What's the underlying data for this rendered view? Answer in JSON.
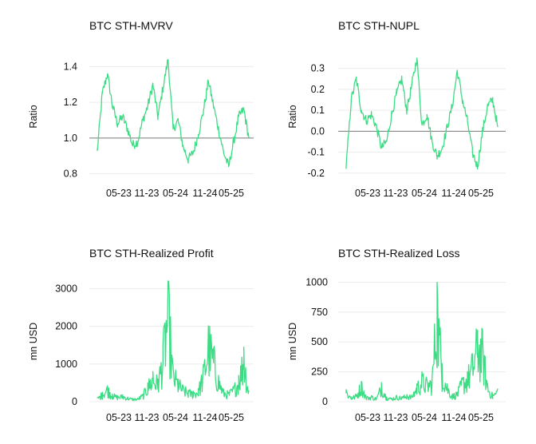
{
  "chart_data": [
    {
      "type": "line",
      "title": "BTC STH-MVRV",
      "ylabel": "Ratio",
      "ylim": [
        0.78,
        1.46
      ],
      "yticks": [
        0.8,
        1.0,
        1.2,
        1.4
      ],
      "ytick_labels": [
        "0.8",
        "1.0",
        "1.2",
        "1.4"
      ],
      "xticks": [
        "05-23",
        "11-23",
        "05-24",
        "11-24",
        "05-25"
      ],
      "reference_line": 1.0,
      "grid": true,
      "color": "#3ddc84",
      "series": [
        {
          "x": [
            "2023-01",
            "2023-02",
            "2023-03",
            "2023-04",
            "2023-05",
            "2023-06",
            "2023-07",
            "2023-08",
            "2023-09",
            "2023-10",
            "2023-11",
            "2023-12",
            "2024-01",
            "2024-02",
            "2024-03",
            "2024-04",
            "2024-05",
            "2024-06",
            "2024-07",
            "2024-08",
            "2024-09",
            "2024-10",
            "2024-11",
            "2024-12",
            "2025-01",
            "2025-02",
            "2025-03",
            "2025-04",
            "2025-05",
            "2025-06",
            "2025-07"
          ],
          "values": [
            0.93,
            1.25,
            1.36,
            1.18,
            1.08,
            1.12,
            1.05,
            0.96,
            0.98,
            1.1,
            1.18,
            1.3,
            1.12,
            1.28,
            1.44,
            1.05,
            1.1,
            0.95,
            0.88,
            0.92,
            1.02,
            1.15,
            1.32,
            1.18,
            1.05,
            0.92,
            0.84,
            0.98,
            1.12,
            1.16,
            1.0
          ]
        }
      ]
    },
    {
      "type": "line",
      "title": "BTC STH-NUPL",
      "ylabel": "Ratio",
      "ylim": [
        -0.22,
        0.36
      ],
      "yticks": [
        -0.2,
        -0.1,
        0.0,
        0.1,
        0.2,
        0.3
      ],
      "ytick_labels": [
        "-0.2",
        "-0.1",
        "0.0",
        "0.1",
        "0.2",
        "0.3"
      ],
      "xticks": [
        "05-23",
        "11-23",
        "05-24",
        "11-24",
        "05-25"
      ],
      "reference_line": 0.0,
      "grid": true,
      "color": "#3ddc84",
      "series": [
        {
          "x": [
            "2023-01",
            "2023-02",
            "2023-03",
            "2023-04",
            "2023-05",
            "2023-06",
            "2023-07",
            "2023-08",
            "2023-09",
            "2023-10",
            "2023-11",
            "2023-12",
            "2024-01",
            "2024-02",
            "2024-03",
            "2024-04",
            "2024-05",
            "2024-06",
            "2024-07",
            "2024-08",
            "2024-09",
            "2024-10",
            "2024-11",
            "2024-12",
            "2025-01",
            "2025-02",
            "2025-03",
            "2025-04",
            "2025-05",
            "2025-06",
            "2025-07"
          ],
          "values": [
            -0.17,
            0.15,
            0.25,
            0.1,
            0.05,
            0.08,
            0.02,
            -0.08,
            -0.05,
            0.08,
            0.18,
            0.25,
            0.1,
            0.22,
            0.35,
            0.03,
            0.08,
            -0.05,
            -0.12,
            -0.08,
            0.02,
            0.12,
            0.29,
            0.15,
            0.05,
            -0.1,
            -0.17,
            0.0,
            0.12,
            0.15,
            0.02
          ]
        }
      ]
    },
    {
      "type": "line",
      "title": "BTC STH-Realized Profit",
      "ylabel": "mn USD",
      "ylim": [
        0,
        3200
      ],
      "yticks": [
        0,
        1000,
        2000,
        3000
      ],
      "ytick_labels": [
        "0",
        "1000",
        "2000",
        "3000"
      ],
      "xticks": [
        "05-23",
        "11-23",
        "05-24",
        "11-24",
        "05-25"
      ],
      "grid": true,
      "color": "#3ddc84",
      "series": [
        {
          "x": [
            "2023-01",
            "2023-02",
            "2023-03",
            "2023-04",
            "2023-05",
            "2023-06",
            "2023-07",
            "2023-08",
            "2023-09",
            "2023-10",
            "2023-11",
            "2023-12",
            "2024-01",
            "2024-02",
            "2024-03",
            "2024-04",
            "2024-05",
            "2024-06",
            "2024-07",
            "2024-08",
            "2024-09",
            "2024-10",
            "2024-11",
            "2024-12",
            "2025-01",
            "2025-02",
            "2025-03",
            "2025-04",
            "2025-05",
            "2025-06",
            "2025-07"
          ],
          "values": [
            100,
            250,
            420,
            200,
            150,
            180,
            120,
            80,
            90,
            200,
            500,
            800,
            600,
            1500,
            3150,
            900,
            600,
            400,
            300,
            280,
            350,
            900,
            2000,
            1400,
            700,
            300,
            250,
            400,
            700,
            1450,
            300
          ]
        }
      ]
    },
    {
      "type": "line",
      "title": "BTC STH-Realized Loss",
      "ylabel": "mn USD",
      "ylim": [
        0,
        1010
      ],
      "yticks": [
        0,
        250,
        500,
        750,
        1000
      ],
      "ytick_labels": [
        "0",
        "250",
        "500",
        "750",
        "1000"
      ],
      "xticks": [
        "05-23",
        "11-23",
        "05-24",
        "11-24",
        "05-25"
      ],
      "grid": true,
      "color": "#3ddc84",
      "series": [
        {
          "x": [
            "2023-01",
            "2023-02",
            "2023-03",
            "2023-04",
            "2023-05",
            "2023-06",
            "2023-07",
            "2023-08",
            "2023-09",
            "2023-10",
            "2023-11",
            "2023-12",
            "2024-01",
            "2024-02",
            "2024-03",
            "2024-04",
            "2024-05",
            "2024-06",
            "2024-07",
            "2024-08",
            "2024-09",
            "2024-10",
            "2024-11",
            "2024-12",
            "2025-01",
            "2025-02",
            "2025-03",
            "2025-04",
            "2025-05",
            "2025-06",
            "2025-07"
          ],
          "values": [
            100,
            40,
            60,
            170,
            40,
            50,
            30,
            160,
            40,
            30,
            50,
            40,
            60,
            50,
            150,
            230,
            180,
            200,
            1000,
            320,
            150,
            60,
            80,
            200,
            250,
            380,
            600,
            540,
            150,
            60,
            110
          ]
        }
      ]
    }
  ]
}
